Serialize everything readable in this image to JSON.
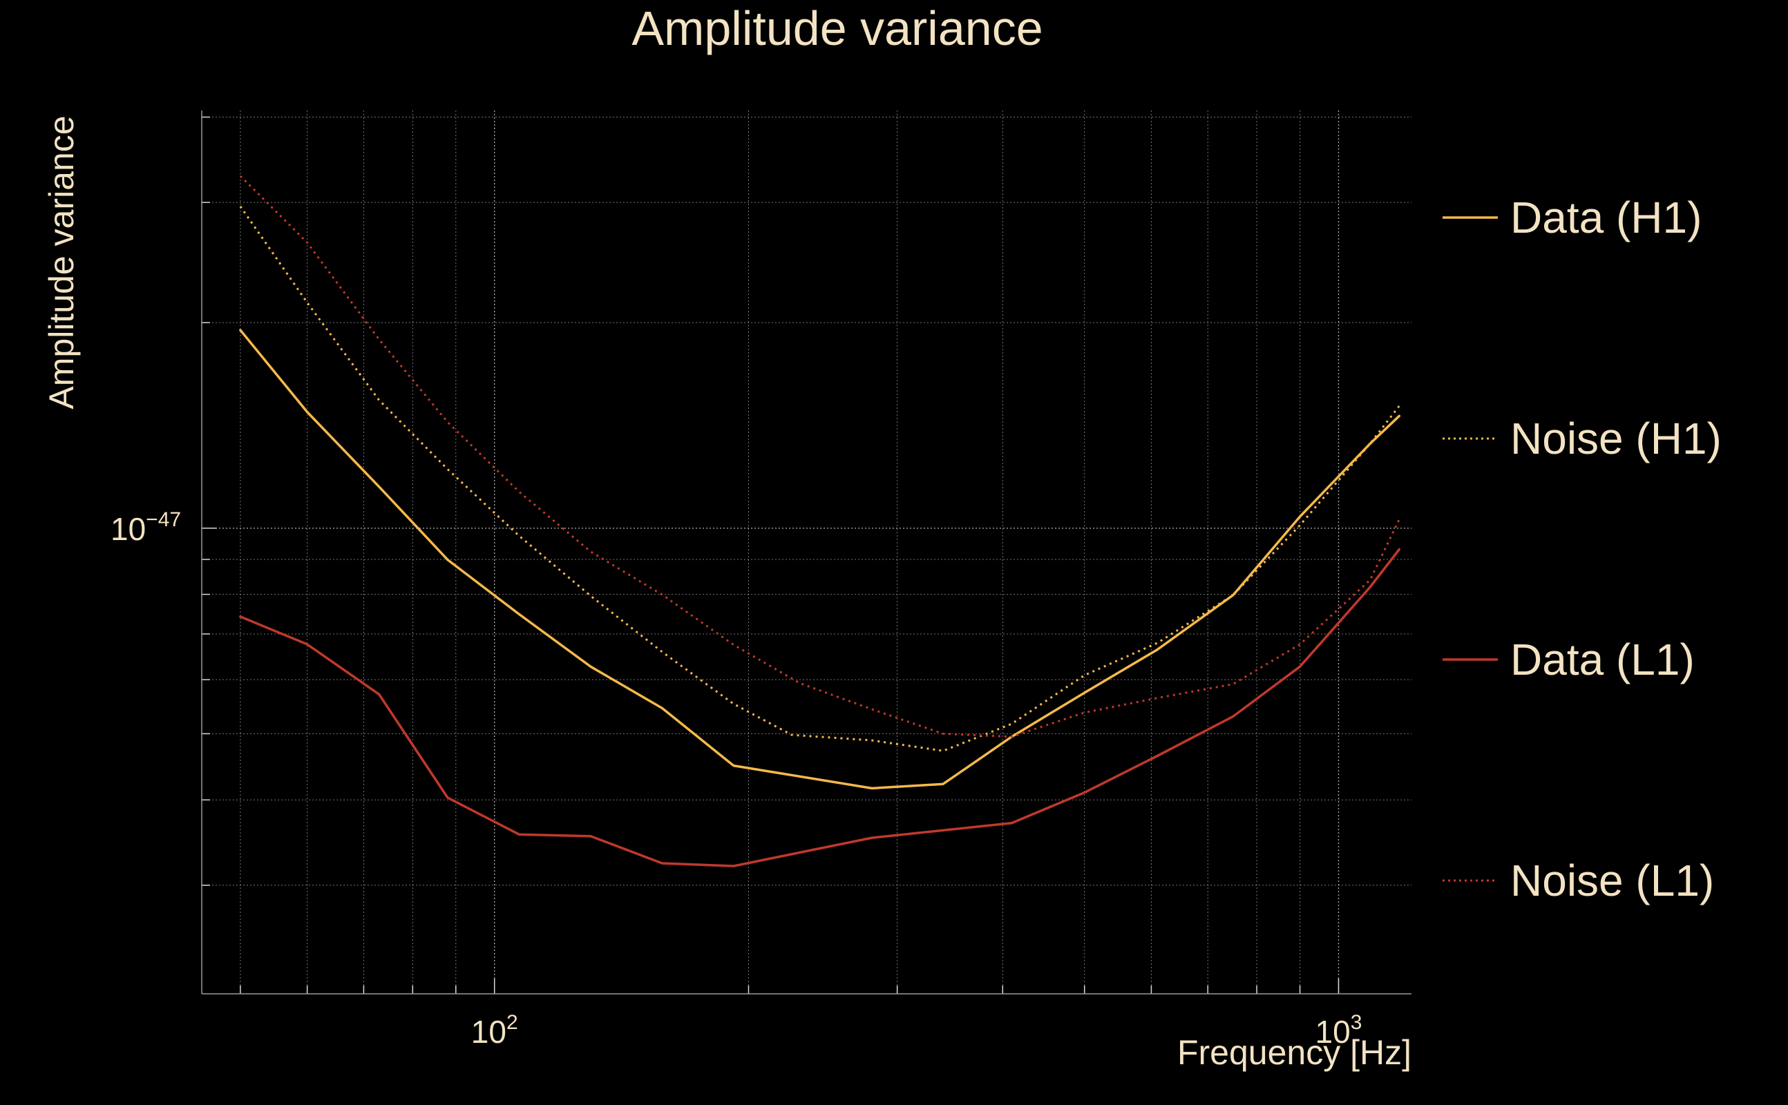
{
  "chart_data": {
    "type": "line",
    "title": "Amplitude variance",
    "xlabel": "Frequency [Hz]",
    "ylabel": "Amplitude variance",
    "x_scale": "log",
    "y_scale": "log",
    "xlim": [
      45,
      1220
    ],
    "ylim": [
      2.08e-48,
      4.09e-47
    ],
    "grid": true,
    "legend_position": "right",
    "x_major_ticks": [
      100,
      1000
    ],
    "x_tick_labels": [
      {
        "base": "10",
        "exp": "2"
      },
      {
        "base": "10",
        "exp": "3"
      }
    ],
    "y_major_ticks": [
      1e-47
    ],
    "y_tick_labels": [
      {
        "base": "10",
        "exp": "−47"
      }
    ],
    "colors": {
      "h1": "#f5b94a",
      "l1": "#c0392b",
      "grid": "#d8d8d8",
      "text": "#f3e3c3"
    },
    "series": [
      {
        "name": "Data (H1)",
        "color": "#f5b94a",
        "style": "solid",
        "x": [
          50,
          60,
          73,
          88,
          107,
          130,
          158,
          192,
          280,
          340,
          410,
          500,
          610,
          750,
          900,
          1090,
          1180
        ],
        "y": [
          1.95e-47,
          1.48e-47,
          1.15e-47,
          8.99e-48,
          7.48e-48,
          6.27e-48,
          5.45e-48,
          4.49e-48,
          4.16e-48,
          4.22e-48,
          4.95e-48,
          5.74e-48,
          6.64e-48,
          7.98e-48,
          1.04e-47,
          1.33e-47,
          1.46e-47
        ]
      },
      {
        "name": "Noise (H1)",
        "color": "#f5b94a",
        "style": "dotted",
        "x": [
          50,
          60,
          73,
          88,
          107,
          130,
          158,
          192,
          225,
          280,
          340,
          410,
          500,
          610,
          750,
          900,
          1090,
          1180
        ],
        "y": [
          2.96e-47,
          2.14e-47,
          1.54e-47,
          1.22e-47,
          9.74e-48,
          7.96e-48,
          6.59e-48,
          5.53e-48,
          4.98e-48,
          4.89e-48,
          4.72e-48,
          5.17e-48,
          6.09e-48,
          6.79e-48,
          7.98e-48,
          1.01e-47,
          1.33e-47,
          1.51e-47
        ]
      },
      {
        "name": "Data (L1)",
        "color": "#c0392b",
        "style": "solid",
        "x": [
          50,
          60,
          73,
          88,
          107,
          130,
          158,
          192,
          230,
          280,
          340,
          410,
          500,
          610,
          750,
          900,
          1090,
          1180
        ],
        "y": [
          7.42e-48,
          6.76e-48,
          5.71e-48,
          4.03e-48,
          3.56e-48,
          3.54e-48,
          3.23e-48,
          3.2e-48,
          3.35e-48,
          3.52e-48,
          3.61e-48,
          3.7e-48,
          4.1e-48,
          4.64e-48,
          5.3e-48,
          6.27e-48,
          8.2e-48,
          9.31e-48
        ]
      },
      {
        "name": "Noise (L1)",
        "color": "#c0392b",
        "style": "dotted",
        "x": [
          50,
          60,
          73,
          88,
          107,
          130,
          158,
          192,
          230,
          280,
          340,
          410,
          500,
          610,
          750,
          900,
          1090,
          1180
        ],
        "y": [
          3.28e-47,
          2.62e-47,
          1.89e-47,
          1.43e-47,
          1.13e-47,
          9.24e-48,
          7.99e-48,
          6.75e-48,
          5.93e-48,
          5.43e-48,
          5e-48,
          4.95e-48,
          5.37e-48,
          5.64e-48,
          5.91e-48,
          6.76e-48,
          8.4e-48,
          1.03e-47
        ]
      }
    ]
  }
}
